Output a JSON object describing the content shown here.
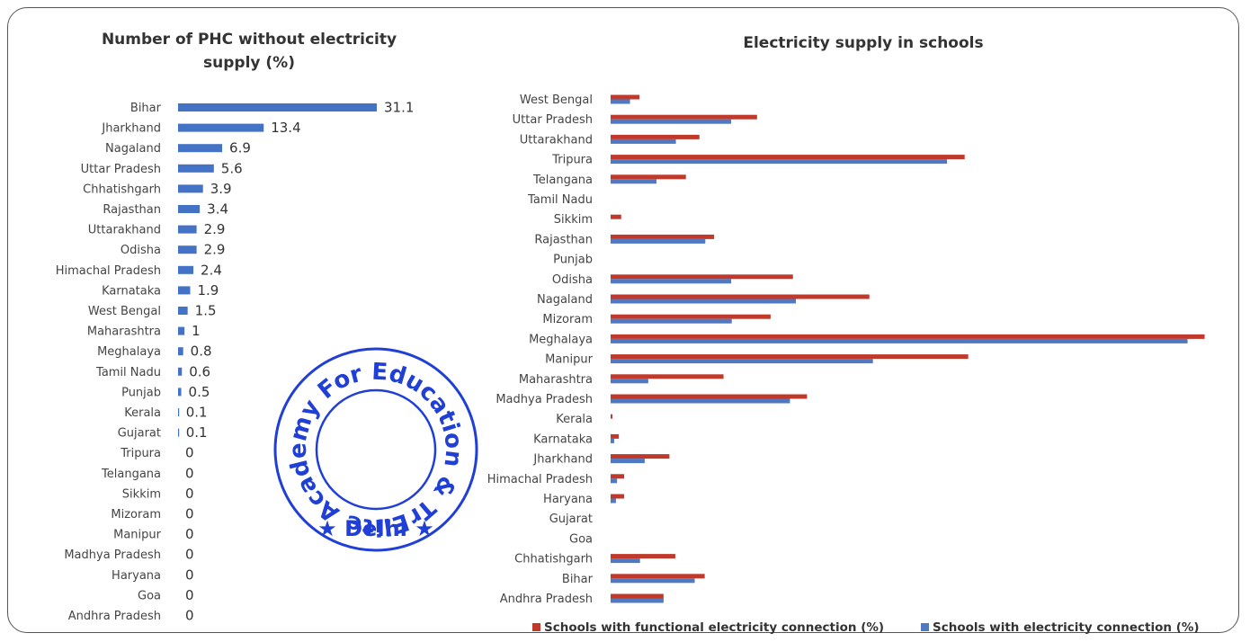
{
  "colors": {
    "phc_bar": "#4472c4",
    "functional": "#c0392b",
    "connection": "#4f79c1",
    "stamp": "#1f3fd6"
  },
  "stamp": {
    "text": "Elite Academy For Education & Training Pvt. Ltd.",
    "city": "★ Delhi ★"
  },
  "chart_data": [
    {
      "type": "bar",
      "orientation": "horizontal",
      "title": "Number of PHC without electricity supply (%)",
      "title_lines": [
        "Number of PHC without electricity",
        "supply (%)"
      ],
      "categories": [
        "Bihar",
        "Jharkhand",
        "Nagaland",
        "Uttar Pradesh",
        "Chhatishgarh",
        "Rajasthan",
        "Uttarakhand",
        "Odisha",
        "Himachal Pradesh",
        "Karnataka",
        "West Bengal",
        "Maharashtra",
        "Meghalaya",
        "Tamil Nadu",
        "Punjab",
        "Kerala",
        "Gujarat",
        "Tripura",
        "Telangana",
        "Sikkim",
        "Mizoram",
        "Manipur",
        "Madhya Pradesh",
        "Haryana",
        "Goa",
        "Andhra Pradesh"
      ],
      "values": [
        31.1,
        13.4,
        6.9,
        5.6,
        3.9,
        3.4,
        2.9,
        2.9,
        2.4,
        1.9,
        1.5,
        1,
        0.8,
        0.6,
        0.5,
        0.1,
        0.1,
        0,
        0,
        0,
        0,
        0,
        0,
        0,
        0,
        0
      ],
      "value_labels": [
        "31.1",
        "13.4",
        "6.9",
        "5.6",
        "3.9",
        "3.4",
        "2.9",
        "2.9",
        "2.4",
        "1.9",
        "1.5",
        "1",
        "0.8",
        "0.6",
        "0.5",
        "0.1",
        "0.1",
        "0",
        "0",
        "0",
        "0",
        "0",
        "0",
        "0",
        "0",
        "0"
      ],
      "xlim": [
        0,
        32
      ],
      "grid": false,
      "legend": "none"
    },
    {
      "type": "bar",
      "orientation": "horizontal",
      "title": "Electricity supply in schools",
      "categories": [
        "West Bengal",
        "Uttar Pradesh",
        "Uttarakhand",
        "Tripura",
        "Telangana",
        "Tamil Nadu",
        "Sikkim",
        "Rajasthan",
        "Punjab",
        "Odisha",
        "Nagaland",
        "Mizoram",
        "Meghalaya",
        "Manipur",
        "Maharashtra",
        "Madhya Pradesh",
        "Kerala",
        "Karnataka",
        "Jharkhand",
        "Himachal Pradesh",
        "Haryana",
        "Gujarat",
        "Goa",
        "Chhatishgarh",
        "Bihar",
        "Andhra Pradesh"
      ],
      "series": [
        {
          "name": "Schools with functional electricity connection (%)",
          "values": [
            4.9,
            24.9,
            15.1,
            60.2,
            12.8,
            0,
            1.8,
            17.6,
            0,
            31.0,
            44.0,
            27.2,
            101.0,
            60.8,
            19.2,
            33.4,
            0.3,
            1.4,
            10.0,
            2.3,
            2.3,
            0,
            0,
            11.0,
            16.0,
            9.0
          ]
        },
        {
          "name": "Schools with electricity connection (%)",
          "values": [
            3.3,
            20.5,
            11.1,
            57.2,
            7.8,
            0,
            0,
            16.1,
            0,
            20.5,
            31.5,
            20.6,
            98.1,
            44.6,
            6.4,
            30.5,
            0,
            0.6,
            5.8,
            1.1,
            0.9,
            0,
            0,
            5.0,
            14.3,
            9.0
          ]
        }
      ],
      "xlim": [
        0,
        102
      ],
      "grid": false,
      "legend": "bottom"
    }
  ]
}
